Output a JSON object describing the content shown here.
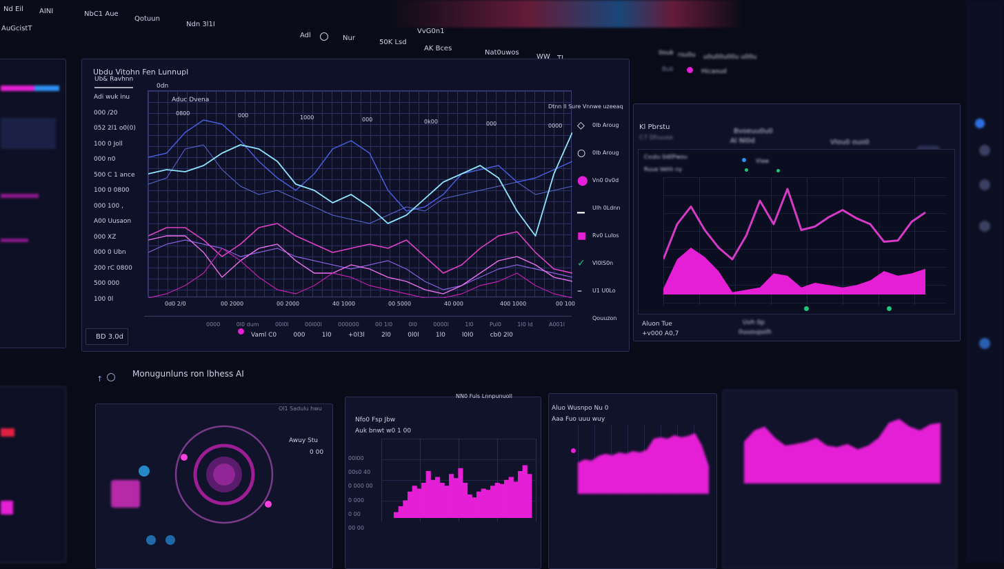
{
  "top_nav": {
    "items": [
      "Nd Eil",
      "AINI",
      "NbC1 Aue",
      "Qotuun",
      "Ndn 3l1I"
    ],
    "account": "AuGcistT"
  },
  "sub_nav": {
    "items": [
      "Adl",
      "Nur",
      "50K Lsd",
      "AK Bces",
      "Nat0uwos",
      "WW",
      "TI"
    ],
    "center": "VvG0n1"
  },
  "main_panel": {
    "title": "Ubdu Vitohn Fen Lunnupl",
    "filter": "Ub& Ravhnn",
    "tab": "0dn",
    "side_list": [
      "Adi wuk inu",
      "000 /20",
      "052 2l1 o0(0)",
      "100 0 Joll",
      "000 n0",
      "500 C 1 ance",
      "100 0 0800",
      "000 100 ,",
      "A00 Uusaon",
      "000 XZ",
      "000 0 Ubn",
      "200 rC 0800",
      "500 000",
      "100 0l"
    ],
    "footer_value": "BD 3.0d",
    "chart_title": "Aduc Dvena",
    "chart_subtitle": "Dtnn Il Sure Vnnwe uzeeaq",
    "top_ticks": [
      "0800",
      "000",
      "1000",
      "000",
      "0k00",
      "000",
      "0000"
    ],
    "x_ticks": [
      "0d0 2/0",
      "00 2000",
      "00 2000",
      "40 1000",
      "00 5000",
      "40 000",
      "400 1000",
      "00 100"
    ],
    "legend": [
      {
        "icon": "diamond-icon",
        "label": "0lb Aroug"
      },
      {
        "icon": "circle-icon",
        "label": "0lb Aroug"
      },
      {
        "icon": "pin-icon",
        "label": "Vn0 0v0d"
      },
      {
        "icon": "bar-icon",
        "label": "Ulh 0Ldnn"
      },
      {
        "icon": "square-icon",
        "label": "Rv0 Lulos"
      },
      {
        "icon": "check-icon",
        "label": "Vl0lS0n"
      },
      {
        "icon": "dash-icon",
        "label": "U1 U0Lo"
      },
      {
        "icon": "",
        "label": "Qouuzon"
      }
    ],
    "stats_labels": [
      "0000",
      "0l0 dum",
      "00l0l",
      "00l00l",
      "000000",
      "00 1l0",
      "0l0",
      "0000l",
      "1l0",
      "Pul0",
      "1l0 ld",
      "A001l"
    ],
    "stats_values": [
      "Vaml C0",
      "000",
      "1l0",
      "+0l3l",
      "2l0",
      "0l0l",
      "1l0",
      "l0l0",
      "cb0 2l0"
    ],
    "series": {
      "cyan": [
        0.6,
        0.62,
        0.61,
        0.64,
        0.7,
        0.74,
        0.72,
        0.66,
        0.55,
        0.52,
        0.46,
        0.5,
        0.44,
        0.36,
        0.4,
        0.48,
        0.56,
        0.6,
        0.64,
        0.58,
        0.42,
        0.3,
        0.6,
        0.8
      ],
      "blue1": [
        0.68,
        0.7,
        0.8,
        0.86,
        0.84,
        0.76,
        0.66,
        0.58,
        0.52,
        0.6,
        0.72,
        0.76,
        0.7,
        0.52,
        0.42,
        0.44,
        0.5,
        0.6,
        0.62,
        0.64,
        0.56,
        0.58,
        0.62,
        0.66
      ],
      "blue2": [
        0.55,
        0.58,
        0.72,
        0.74,
        0.62,
        0.54,
        0.5,
        0.52,
        0.48,
        0.44,
        0.4,
        0.38,
        0.36,
        0.4,
        0.44,
        0.42,
        0.48,
        0.5,
        0.52,
        0.54,
        0.56,
        0.5,
        0.52,
        0.54
      ],
      "pink1": [
        0.3,
        0.34,
        0.34,
        0.28,
        0.2,
        0.26,
        0.34,
        0.36,
        0.3,
        0.26,
        0.22,
        0.24,
        0.26,
        0.24,
        0.28,
        0.2,
        0.12,
        0.16,
        0.24,
        0.3,
        0.32,
        0.22,
        0.14,
        0.12
      ],
      "pink2": [
        0.28,
        0.3,
        0.3,
        0.22,
        0.1,
        0.18,
        0.24,
        0.26,
        0.18,
        0.12,
        0.12,
        0.16,
        0.14,
        0.1,
        0.08,
        0.04,
        0.02,
        0.06,
        0.12,
        0.18,
        0.2,
        0.16,
        0.1,
        0.08
      ],
      "violet": [
        0.22,
        0.26,
        0.28,
        0.26,
        0.24,
        0.2,
        0.22,
        0.24,
        0.2,
        0.18,
        0.16,
        0.14,
        0.16,
        0.18,
        0.14,
        0.08,
        0.04,
        0.06,
        0.1,
        0.14,
        0.16,
        0.14,
        0.12,
        0.1
      ],
      "magenta_low": [
        0.0,
        0.02,
        0.06,
        0.12,
        0.24,
        0.18,
        0.1,
        0.04,
        0.02,
        0.06,
        0.12,
        0.1,
        0.06,
        0.04,
        0.02,
        0.0,
        0.0,
        0.02,
        0.06,
        0.08,
        0.12,
        0.06,
        0.02,
        0.0
      ]
    }
  },
  "right_panel": {
    "header": [
      "0ouk",
      "rsu0u",
      "u0u00u00u u00u"
    ],
    "status": "Buk",
    "status_label": "Hicaoud",
    "title": "Kl Pbrstu",
    "subtitle": "C7 Dhuuse",
    "summary_title": "Bvoeuu0u0",
    "summary_value": "Al Nl0d",
    "summary_right": "Vlou0 ouo0",
    "card_title": "Cvutu 0d0Pwou",
    "card_sub": "Ruua Vehh ny",
    "legend_label": "Vlaw",
    "footer": [
      "Aluon Tue",
      "+v000 A0,7"
    ],
    "footer_mid": [
      "Uvh 0p",
      "0uuoupolh"
    ],
    "line": [
      0.3,
      0.6,
      0.75,
      0.55,
      0.4,
      0.3,
      0.5,
      0.8,
      0.6,
      0.9,
      0.55,
      0.58,
      0.66,
      0.72,
      0.65,
      0.6,
      0.45,
      0.46,
      0.62,
      0.7
    ],
    "area": [
      0.05,
      0.3,
      0.4,
      0.32,
      0.2,
      0.02,
      0.04,
      0.06,
      0.18,
      0.16,
      0.06,
      0.1,
      0.08,
      0.06,
      0.08,
      0.12,
      0.2,
      0.16,
      0.18,
      0.22
    ]
  },
  "bottom": {
    "title": "Monugunluns ron lbhess AI",
    "card1": {
      "title": "Ol1 Sadulu hwu",
      "label": "Awuy Stu",
      "value": "0 00"
    },
    "card2": {
      "title": "NN0 Fuls Lnnpunuoll",
      "sub1": "Nfo0 Fsp Jbw",
      "sub2": "Auk bnwt w0 1 00",
      "y_ticks": [
        "00l00",
        "00s0 40",
        "0 000 00",
        "0 000",
        "0 00",
        "00 00"
      ],
      "bars": [
        0.1,
        0.2,
        0.3,
        0.45,
        0.55,
        0.5,
        0.6,
        0.8,
        0.65,
        0.7,
        0.6,
        0.55,
        0.75,
        0.68,
        0.85,
        0.6,
        0.4,
        0.35,
        0.45,
        0.5,
        0.48,
        0.55,
        0.6,
        0.58,
        0.65,
        0.7,
        0.62,
        0.8,
        0.9,
        0.75
      ]
    },
    "card3": {
      "title": "Aluo Wusnpo Nu 0",
      "sub": "Aaa Fuo uuu wuy",
      "area": [
        0.45,
        0.5,
        0.48,
        0.55,
        0.58,
        0.56,
        0.6,
        0.58,
        0.62,
        0.6,
        0.64,
        0.8,
        0.82,
        0.8,
        0.85,
        0.82,
        0.84,
        0.88,
        0.7,
        0.4
      ]
    },
    "card4": {
      "area": [
        0.55,
        0.7,
        0.75,
        0.6,
        0.5,
        0.52,
        0.55,
        0.6,
        0.5,
        0.48,
        0.52,
        0.45,
        0.5,
        0.6,
        0.8,
        0.85,
        0.75,
        0.7,
        0.78,
        0.8
      ]
    }
  },
  "colors": {
    "bg": "#090b18",
    "accent": "#e51fd5",
    "cyan": "#7fe3ff",
    "blue": "#4a5ce0",
    "green": "#22c47a"
  }
}
